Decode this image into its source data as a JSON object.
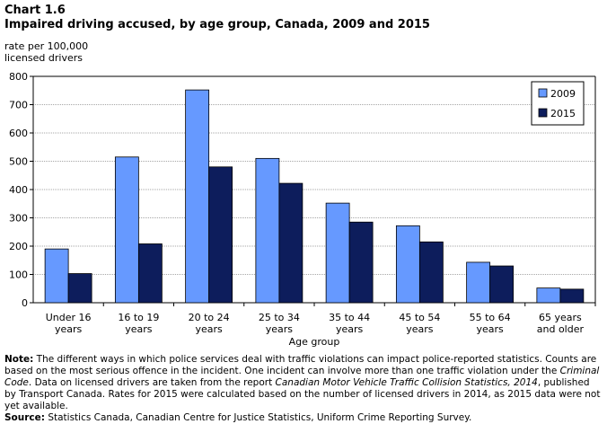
{
  "header": {
    "chart_number": "Chart 1.6",
    "title": "Impaired driving accused, by age group, Canada, 2009 and 2015",
    "ylabel_line1": "rate per 100,000",
    "ylabel_line2": "licensed drivers"
  },
  "colors": {
    "series_2009": "#6699ff",
    "series_2015": "#0d1d5c",
    "gridline": "#a6a6a6",
    "axis": "#000000"
  },
  "chart_data": {
    "type": "bar",
    "title": "Impaired driving accused, by age group, Canada, 2009 and 2015",
    "xlabel": "Age group",
    "ylabel": "rate per 100,000 licensed drivers",
    "ylim": [
      0,
      800
    ],
    "yticks": [
      0,
      100,
      200,
      300,
      400,
      500,
      600,
      700,
      800
    ],
    "grid": true,
    "legend_position": "top-right",
    "categories": [
      [
        "Under 16",
        "years"
      ],
      [
        "16 to 19",
        "years"
      ],
      [
        "20 to 24",
        "years"
      ],
      [
        "25 to 34",
        "years"
      ],
      [
        "35 to 44",
        "years"
      ],
      [
        "45 to 54",
        "years"
      ],
      [
        "55 to 64",
        "years"
      ],
      [
        "65 years",
        "and older"
      ]
    ],
    "series": [
      {
        "name": "2009",
        "values": [
          190,
          515,
          752,
          510,
          352,
          272,
          143,
          52
        ]
      },
      {
        "name": "2015",
        "values": [
          103,
          208,
          480,
          422,
          285,
          215,
          130,
          48
        ]
      }
    ]
  },
  "notes": {
    "note_label": "Note:",
    "note_text_1": " The different ways in which police services deal with traffic violations can impact police-reported statistics. Counts are based on the most serious offence in the incident. One incident can involve more than one traffic violation under the ",
    "note_italic_1": "Criminal Code",
    "note_text_2": ". Data on licensed drivers are taken from the report ",
    "note_italic_2": "Canadian Motor Vehicle Traffic Collision Statistics, 2014",
    "note_text_3": ", published by Transport Canada. Rates for 2015 were calculated based on the number of licensed drivers in 2014, as 2015 data were not yet available.",
    "source_label": "Source:",
    "source_text": " Statistics Canada, Canadian Centre for Justice Statistics, Uniform Crime Reporting Survey."
  }
}
